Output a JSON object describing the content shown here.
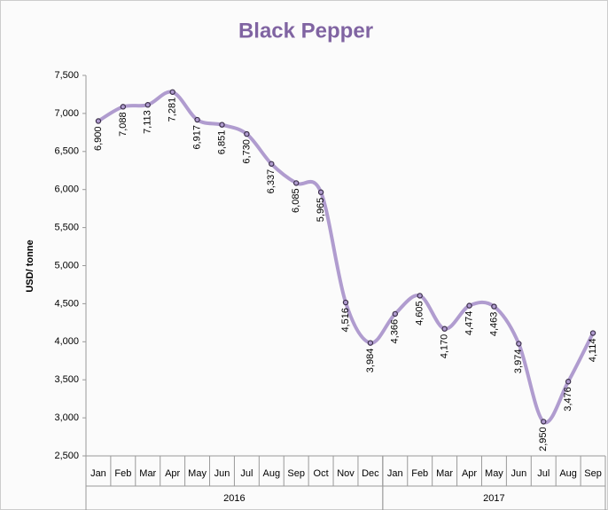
{
  "chart_data": {
    "type": "line",
    "title": "Black Pepper",
    "y_label": "USD/ tonne",
    "category_groups": [
      {
        "label": "2016",
        "categories": [
          "Jan",
          "Feb",
          "Mar",
          "Apr",
          "May",
          "Jun",
          "Jul",
          "Aug",
          "Sep",
          "Oct",
          "Nov",
          "Dec"
        ]
      },
      {
        "label": "2017",
        "categories": [
          "Jan",
          "Feb",
          "Mar",
          "Apr",
          "May",
          "Jun",
          "Jul",
          "Aug",
          "Sep"
        ]
      }
    ],
    "series": [
      {
        "name": "Black Pepper",
        "color": "#b09ccf",
        "marker_color": "#3b2f4a",
        "values": [
          6900,
          7088,
          7113,
          7281,
          6917,
          6851,
          6730,
          6337,
          6085,
          5965,
          4516,
          3984,
          4366,
          4605,
          4170,
          4474,
          4463,
          3974,
          2950,
          3476,
          4114
        ],
        "value_labels": [
          "6,900",
          "7,088",
          "7,113",
          "7,281",
          "6,917",
          "6,851",
          "6,730",
          "6,337",
          "6,085",
          "5,965",
          "4,516",
          "3,984",
          "4,366",
          "4,605",
          "4,170",
          "4,474",
          "4,463",
          "3,974",
          "2,950",
          "3,476",
          "4,114"
        ]
      }
    ],
    "ylim": [
      2500,
      7500
    ],
    "yticks": [
      {
        "value": 2500,
        "label": "2,500"
      },
      {
        "value": 3000,
        "label": "3,000"
      },
      {
        "value": 3500,
        "label": "3,500"
      },
      {
        "value": 4000,
        "label": "4,000"
      },
      {
        "value": 4500,
        "label": "4,500"
      },
      {
        "value": 5000,
        "label": "5,000"
      },
      {
        "value": 5500,
        "label": "5,500"
      },
      {
        "value": 6000,
        "label": "6,000"
      },
      {
        "value": 6500,
        "label": "6,500"
      },
      {
        "value": 7000,
        "label": "7,000"
      },
      {
        "value": 7500,
        "label": "7,500"
      }
    ]
  }
}
